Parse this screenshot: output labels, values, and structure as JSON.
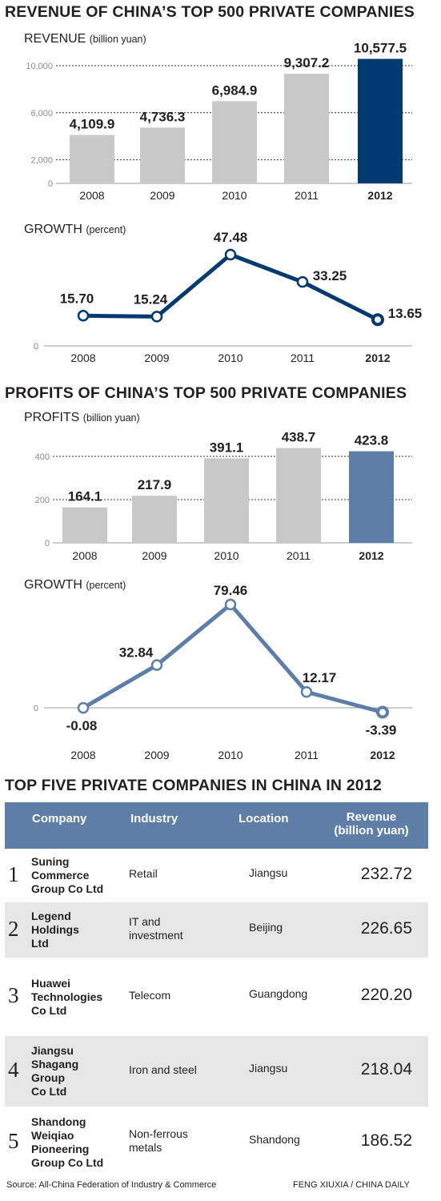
{
  "titles": {
    "revenue": "REVENUE OF CHINA’S TOP 500 PRIVATE COMPANIES",
    "profits": "PROFITS OF CHINA’S TOP 500 PRIVATE COMPANIES",
    "top_five": "TOP FIVE PRIVATE COMPANIES IN CHINA IN 2012"
  },
  "chart_data": [
    {
      "type": "bar",
      "label": "REVENUE",
      "unit": "(billion yuan)",
      "categories": [
        "2008",
        "2009",
        "2010",
        "2011",
        "2012"
      ],
      "values": [
        4109.9,
        4736.3,
        6984.9,
        9307.2,
        10577.5
      ],
      "value_labels": [
        "4,109.9",
        "4,736.3",
        "6,984.9",
        "9,307.2",
        "10,577.5"
      ],
      "yticks": [
        "0",
        "2,000",
        "6,000",
        "10,000"
      ],
      "highlight_color": "#003a70",
      "base_color": "#c8c8c8"
    },
    {
      "type": "line",
      "label": "GROWTH",
      "unit": "(percent)",
      "categories": [
        "2008",
        "2009",
        "2010",
        "2011",
        "2012"
      ],
      "values": [
        15.7,
        15.24,
        47.48,
        33.25,
        13.65
      ],
      "value_labels": [
        "15.70",
        "15.24",
        "47.48",
        "33.25",
        "13.65"
      ],
      "yticks": [
        "0"
      ],
      "color": "#003a70"
    },
    {
      "type": "bar",
      "label": "PROFITS",
      "unit": "(billion yuan)",
      "categories": [
        "2008",
        "2009",
        "2010",
        "2011",
        "2012"
      ],
      "values": [
        164.1,
        217.9,
        391.1,
        438.7,
        423.8
      ],
      "value_labels": [
        "164.1",
        "217.9",
        "391.1",
        "438.7",
        "423.8"
      ],
      "yticks": [
        "0",
        "200",
        "400"
      ],
      "highlight_color": "#5e7ea8",
      "base_color": "#c8c8c8"
    },
    {
      "type": "line",
      "label": "GROWTH",
      "unit": "(percent)",
      "categories": [
        "2008",
        "2009",
        "2010",
        "2011",
        "2012"
      ],
      "values": [
        -0.08,
        32.84,
        79.46,
        12.17,
        -3.39
      ],
      "value_labels": [
        "-0.08",
        "32.84",
        "79.46",
        "12.17",
        "-3.39"
      ],
      "yticks": [
        "0"
      ],
      "color": "#5e7ea8"
    },
    {
      "type": "table",
      "columns": [
        "Company",
        "Industry",
        "Location",
        "Revenue (billion yuan)"
      ],
      "rows": [
        {
          "rank": "1",
          "company": [
            "Suning",
            "Commerce",
            "Group Co Ltd"
          ],
          "industry": [
            "Retail"
          ],
          "location": "Jiangsu",
          "revenue": "232.72"
        },
        {
          "rank": "2",
          "company": [
            "Legend",
            "Holdings",
            "Ltd"
          ],
          "industry": [
            "IT and",
            "investment"
          ],
          "location": "Beijing",
          "revenue": "226.65"
        },
        {
          "rank": "3",
          "company": [
            "Huawei",
            "Technologies",
            "Co Ltd"
          ],
          "industry": [
            "Telecom"
          ],
          "location": "Guangdong",
          "revenue": "220.20"
        },
        {
          "rank": "4",
          "company": [
            "Jiangsu",
            "Shagang",
            "Group",
            "Co Ltd"
          ],
          "industry": [
            "Iron and steel"
          ],
          "location": "Jiangsu",
          "revenue": "218.04"
        },
        {
          "rank": "5",
          "company": [
            "Shandong",
            "Weiqiao",
            "Pioneering",
            "Group Co Ltd"
          ],
          "industry": [
            "Non-ferrous",
            "metals"
          ],
          "location": "Shandong",
          "revenue": "186.52"
        }
      ]
    }
  ],
  "table_header": {
    "company": "Company",
    "industry": "Industry",
    "location": "Location",
    "revenue_line1": "Revenue",
    "revenue_line2": "(billion yuan)"
  },
  "footer": {
    "source": "Source: All-China Federation of Industry & Commerce",
    "credit": "FENG XIUXIA / CHINA DAILY"
  }
}
